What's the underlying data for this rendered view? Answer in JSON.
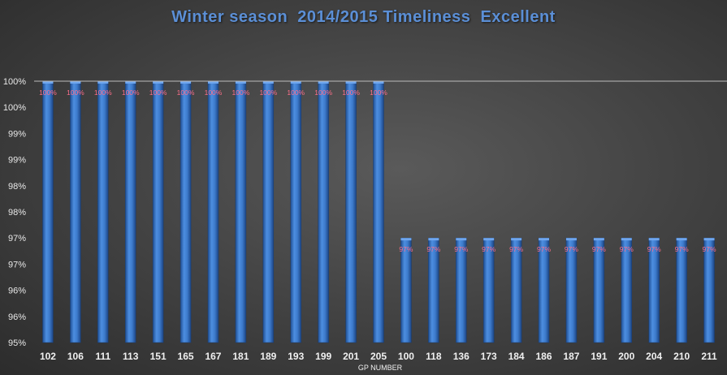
{
  "chart_data": {
    "type": "bar",
    "title": "Winter season  2014/2015 Timeliness  Excellent",
    "xlabel": "GP NUMBER",
    "ylabel": "",
    "categories": [
      "102",
      "106",
      "111",
      "113",
      "151",
      "165",
      "167",
      "181",
      "189",
      "193",
      "199",
      "201",
      "205",
      "100",
      "118",
      "136",
      "173",
      "184",
      "186",
      "187",
      "191",
      "200",
      "204",
      "210",
      "211"
    ],
    "values": [
      100,
      100,
      100,
      100,
      100,
      100,
      100,
      100,
      100,
      100,
      100,
      100,
      100,
      97,
      97,
      97,
      97,
      97,
      97,
      97,
      97,
      97,
      97,
      97,
      97
    ],
    "data_labels": [
      "100%",
      "100%",
      "100%",
      "100%",
      "100%",
      "100%",
      "100%",
      "100%",
      "100%",
      "100%",
      "100%",
      "100%",
      "100%",
      "97%",
      "97%",
      "97%",
      "97%",
      "97%",
      "97%",
      "97%",
      "97%",
      "97%",
      "97%",
      "97%",
      "97%"
    ],
    "ylim": [
      95,
      100
    ],
    "y_ticks": [
      95,
      95.5,
      96,
      96.5,
      97,
      97.5,
      98,
      98.5,
      99,
      99.5,
      100
    ],
    "y_tick_labels": [
      "95%",
      "96%",
      "96%",
      "97%",
      "97%",
      "98%",
      "98%",
      "99%",
      "99%",
      "100%",
      "100%"
    ],
    "grid": false,
    "colors": {
      "bar": "#3f7ed2",
      "data_label": "#ff6f8a",
      "title": "#5b8fd6"
    }
  }
}
